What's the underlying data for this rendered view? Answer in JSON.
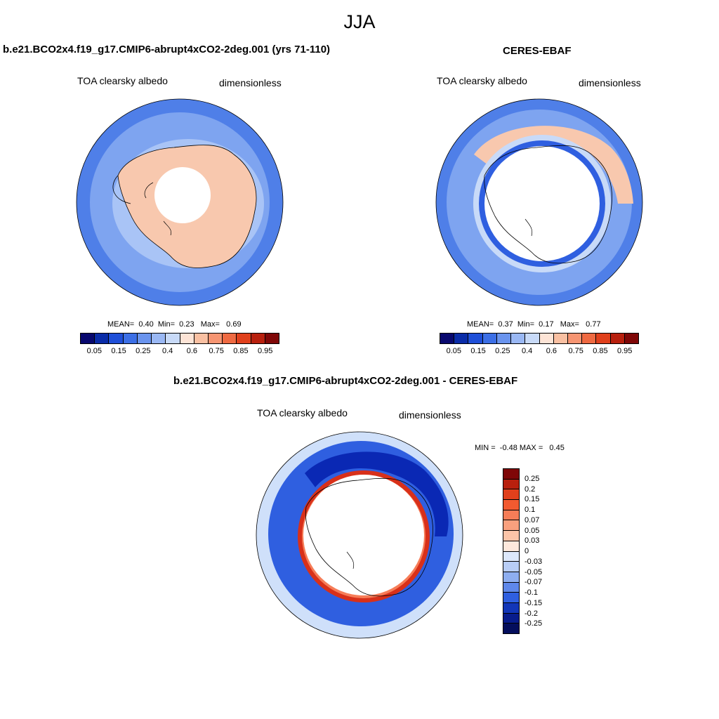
{
  "figure": {
    "title": "JJA",
    "panels": [
      {
        "title": "b.e21.BCO2x4.f19_g17.CMIP6-abrupt4xCO2-2deg.001 (yrs 71-110)",
        "variable": "TOA clearsky albedo",
        "units": "dimensionless",
        "stats": {
          "mean_label": "MEAN=",
          "mean": "0.40",
          "min_label": "Min=",
          "min": "0.23",
          "max_label": "Max=",
          "max": "0.69"
        }
      },
      {
        "title": "CERES-EBAF",
        "variable": "TOA clearsky albedo",
        "units": "dimensionless",
        "stats": {
          "mean_label": "MEAN=",
          "mean": "0.37",
          "min_label": "Min=",
          "min": "0.17",
          "max_label": "Max=",
          "max": "0.77"
        }
      },
      {
        "title": "b.e21.BCO2x4.f19_g17.CMIP6-abrupt4xCO2-2deg.001 - CERES-EBAF",
        "variable": "TOA clearsky albedo",
        "units": "dimensionless",
        "stats": {
          "min_label": "MIN =",
          "min": "-0.48",
          "max_label": "MAX =",
          "max": "0.45"
        }
      }
    ]
  },
  "chart_data": [
    {
      "type": "heatmap",
      "projection": "south-polar-stereographic",
      "title": "b.e21.BCO2x4.f19_g17.CMIP6-abrupt4xCO2-2deg.001 (yrs 71-110)",
      "field": "TOA clearsky albedo",
      "units": "dimensionless",
      "mean": 0.4,
      "min": 0.23,
      "max": 0.69,
      "colorbar": {
        "orientation": "horizontal",
        "ticks": [
          "0.05",
          "0.15",
          "0.25",
          "0.4",
          "0.6",
          "0.75",
          "0.85",
          "0.95"
        ],
        "colors": [
          "#08086e",
          "#0a2ca8",
          "#1f4fd8",
          "#3c6fe6",
          "#6a94ee",
          "#9ab8f4",
          "#c8daf8",
          "#fde4d6",
          "#f9c0a2",
          "#f69572",
          "#ef6a42",
          "#e0401c",
          "#b8200e",
          "#7f0707"
        ]
      }
    },
    {
      "type": "heatmap",
      "projection": "south-polar-stereographic",
      "title": "CERES-EBAF",
      "field": "TOA clearsky albedo",
      "units": "dimensionless",
      "mean": 0.37,
      "min": 0.17,
      "max": 0.77,
      "colorbar": {
        "orientation": "horizontal",
        "ticks": [
          "0.05",
          "0.15",
          "0.25",
          "0.4",
          "0.6",
          "0.75",
          "0.85",
          "0.95"
        ],
        "colors": [
          "#08086e",
          "#0a2ca8",
          "#1f4fd8",
          "#3c6fe6",
          "#6a94ee",
          "#9ab8f4",
          "#c8daf8",
          "#fde4d6",
          "#f9c0a2",
          "#f69572",
          "#ef6a42",
          "#e0401c",
          "#b8200e",
          "#7f0707"
        ]
      }
    },
    {
      "type": "heatmap",
      "projection": "south-polar-stereographic",
      "title": "b.e21.BCO2x4.f19_g17.CMIP6-abrupt4xCO2-2deg.001 - CERES-EBAF",
      "field": "TOA clearsky albedo",
      "units": "dimensionless",
      "min": -0.48,
      "max": 0.45,
      "colorbar": {
        "orientation": "vertical",
        "ticks": [
          "0.25",
          "0.2",
          "0.15",
          "0.1",
          "0.07",
          "0.05",
          "0.03",
          "0",
          "-0.03",
          "-0.05",
          "-0.07",
          "-0.1",
          "-0.15",
          "-0.2",
          "-0.25"
        ],
        "colors": [
          "#7f0707",
          "#b8200e",
          "#e0401c",
          "#f25a30",
          "#f67d58",
          "#f9a07e",
          "#fbc4a8",
          "#fde8dc",
          "#dde8fb",
          "#b8cdf6",
          "#8eaef0",
          "#5f88ea",
          "#2f5fe0",
          "#1236b8",
          "#081c8c",
          "#040e5c"
        ]
      }
    }
  ],
  "colors": {
    "ocean_model": "#7ea4f0",
    "outer_ring": "#4f7fe8",
    "land_model": "#f8c8ae",
    "diff_light": "#cfe0fa",
    "diff_dark": "#0a28b4",
    "diff_red": "#d8301a"
  }
}
